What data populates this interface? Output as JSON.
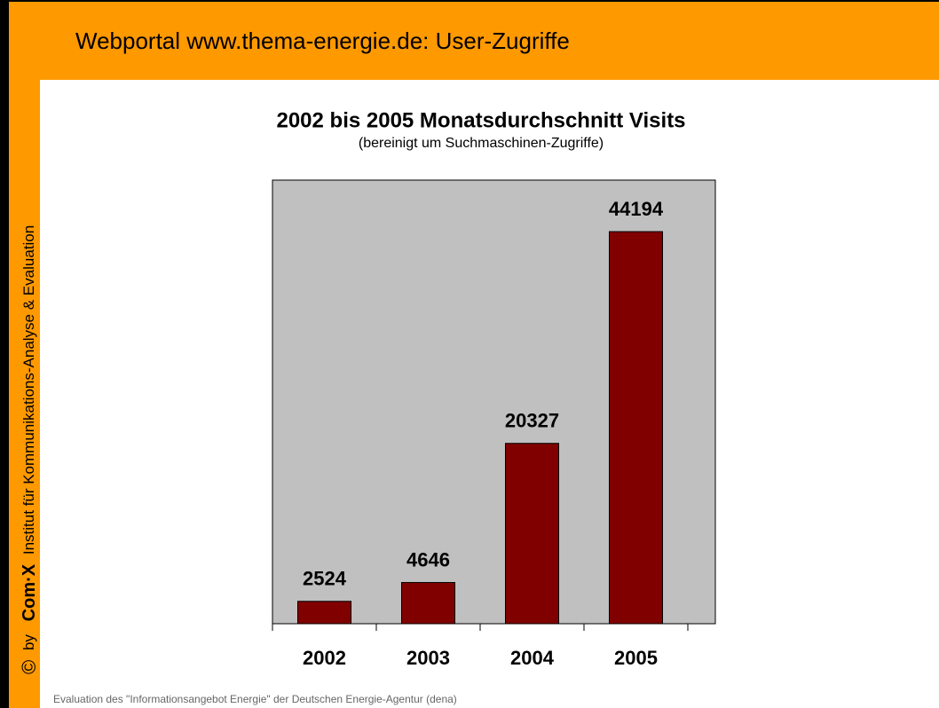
{
  "header": {
    "title": "Webportal www.thema-energie.de: User-Zugriffe"
  },
  "sidebar": {
    "copyright": "©",
    "by": "by",
    "logo": "Com·X",
    "institute": "Institut für Kommunikations-Analyse & Evaluation"
  },
  "footer": "Evaluation des \"Informationsangebot Energie\" der Deutschen Energie-Agentur (dena)",
  "chart_data": {
    "type": "bar",
    "title": "2002 bis 2005 Monatsdurchschnitt Visits",
    "subtitle": "(bereinigt um Suchmaschinen-Zugriffe)",
    "categories": [
      "2002",
      "2003",
      "2004",
      "2005"
    ],
    "values": [
      2524,
      4646,
      20327,
      44194
    ],
    "color": "#800000",
    "plot_background": "#c0c0c0",
    "ylim": [
      0,
      50000
    ]
  }
}
